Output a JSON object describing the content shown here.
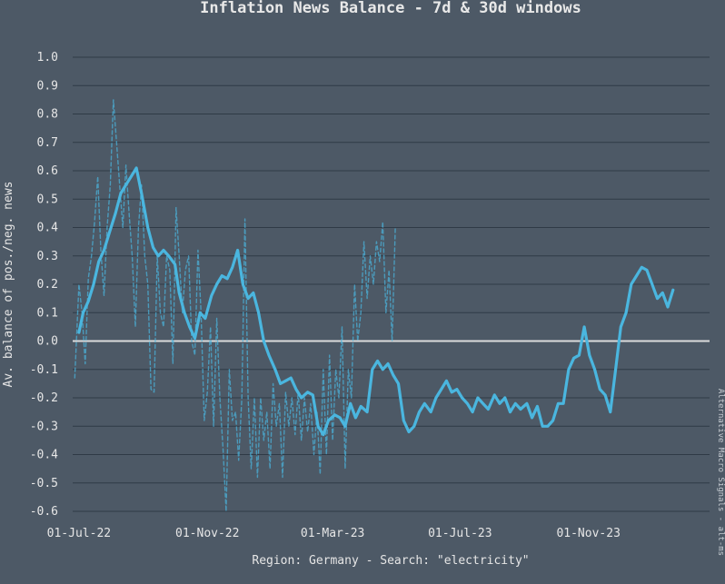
{
  "chart_data": {
    "type": "line",
    "title": "Inflation News Balance - 7d & 30d windows",
    "xlabel": "Region: Germany - Search: \"electricity\"",
    "ylabel": "Av. balance of pos./neg. news",
    "source_note": "Alternative Macro Signals - alt-ms",
    "x_ticks": [
      "01-Jul-22",
      "01-Nov-22",
      "01-Mar-23",
      "01-Jul-23",
      "01-Nov-23"
    ],
    "y_ticks": [
      "1.0",
      "0.9",
      "0.8",
      "0.7",
      "0.6",
      "0.5",
      "0.4",
      "0.3",
      "0.2",
      "0.1",
      "0.0",
      "-0.1",
      "-0.2",
      "-0.3",
      "-0.4",
      "-0.5",
      "-0.6"
    ],
    "ylim": [
      -0.6,
      1.0
    ],
    "xlim": [
      "2022-06-25",
      "2024-02-25"
    ],
    "grid": true,
    "zero_line": true,
    "colors": {
      "background": "#4d5966",
      "line": "#4ab6df",
      "grid": "#2f3a46",
      "zero": "#dcdcdc"
    },
    "series": [
      {
        "window": "30d",
        "style": "solid",
        "points": [
          [
            "2022-07-01",
            0.03
          ],
          [
            "2022-07-05",
            0.1
          ],
          [
            "2022-07-10",
            0.14
          ],
          [
            "2022-07-15",
            0.2
          ],
          [
            "2022-07-20",
            0.28
          ],
          [
            "2022-07-25",
            0.32
          ],
          [
            "2022-07-30",
            0.38
          ],
          [
            "2022-08-05",
            0.45
          ],
          [
            "2022-08-10",
            0.52
          ],
          [
            "2022-08-15",
            0.55
          ],
          [
            "2022-08-20",
            0.58
          ],
          [
            "2022-08-25",
            0.61
          ],
          [
            "2022-08-30",
            0.52
          ],
          [
            "2022-09-05",
            0.4
          ],
          [
            "2022-09-10",
            0.33
          ],
          [
            "2022-09-15",
            0.3
          ],
          [
            "2022-09-20",
            0.32
          ],
          [
            "2022-09-25",
            0.3
          ],
          [
            "2022-10-01",
            0.27
          ],
          [
            "2022-10-05",
            0.17
          ],
          [
            "2022-10-10",
            0.1
          ],
          [
            "2022-10-15",
            0.05
          ],
          [
            "2022-10-20",
            0.01
          ],
          [
            "2022-10-25",
            0.1
          ],
          [
            "2022-10-30",
            0.08
          ],
          [
            "2022-11-05",
            0.16
          ],
          [
            "2022-11-10",
            0.2
          ],
          [
            "2022-11-15",
            0.23
          ],
          [
            "2022-11-20",
            0.22
          ],
          [
            "2022-11-25",
            0.26
          ],
          [
            "2022-11-30",
            0.32
          ],
          [
            "2022-12-05",
            0.2
          ],
          [
            "2022-12-10",
            0.15
          ],
          [
            "2022-12-15",
            0.17
          ],
          [
            "2022-12-20",
            0.1
          ],
          [
            "2022-12-25",
            0.0
          ],
          [
            "2022-12-30",
            -0.05
          ],
          [
            "2023-01-05",
            -0.1
          ],
          [
            "2023-01-10",
            -0.15
          ],
          [
            "2023-01-15",
            -0.14
          ],
          [
            "2023-01-20",
            -0.13
          ],
          [
            "2023-01-25",
            -0.17
          ],
          [
            "2023-01-30",
            -0.2
          ],
          [
            "2023-02-05",
            -0.18
          ],
          [
            "2023-02-10",
            -0.19
          ],
          [
            "2023-02-15",
            -0.3
          ],
          [
            "2023-02-20",
            -0.33
          ],
          [
            "2023-02-25",
            -0.28
          ],
          [
            "2023-03-03",
            -0.26
          ],
          [
            "2023-03-08",
            -0.27
          ],
          [
            "2023-03-13",
            -0.3
          ],
          [
            "2023-03-18",
            -0.22
          ],
          [
            "2023-03-23",
            -0.27
          ],
          [
            "2023-03-28",
            -0.23
          ],
          [
            "2023-04-03",
            -0.25
          ],
          [
            "2023-04-08",
            -0.1
          ],
          [
            "2023-04-13",
            -0.07
          ],
          [
            "2023-04-18",
            -0.1
          ],
          [
            "2023-04-23",
            -0.08
          ],
          [
            "2023-04-28",
            -0.12
          ],
          [
            "2023-05-03",
            -0.15
          ],
          [
            "2023-05-08",
            -0.28
          ],
          [
            "2023-05-13",
            -0.32
          ],
          [
            "2023-05-18",
            -0.3
          ],
          [
            "2023-05-23",
            -0.25
          ],
          [
            "2023-05-28",
            -0.22
          ],
          [
            "2023-06-03",
            -0.25
          ],
          [
            "2023-06-08",
            -0.2
          ],
          [
            "2023-06-13",
            -0.17
          ],
          [
            "2023-06-18",
            -0.14
          ],
          [
            "2023-06-23",
            -0.18
          ],
          [
            "2023-06-28",
            -0.17
          ],
          [
            "2023-07-03",
            -0.2
          ],
          [
            "2023-07-08",
            -0.22
          ],
          [
            "2023-07-13",
            -0.25
          ],
          [
            "2023-07-18",
            -0.2
          ],
          [
            "2023-07-23",
            -0.22
          ],
          [
            "2023-07-28",
            -0.24
          ],
          [
            "2023-08-03",
            -0.19
          ],
          [
            "2023-08-08",
            -0.22
          ],
          [
            "2023-08-13",
            -0.2
          ],
          [
            "2023-08-18",
            -0.25
          ],
          [
            "2023-08-23",
            -0.22
          ],
          [
            "2023-08-28",
            -0.24
          ],
          [
            "2023-09-03",
            -0.22
          ],
          [
            "2023-09-08",
            -0.27
          ],
          [
            "2023-09-13",
            -0.23
          ],
          [
            "2023-09-18",
            -0.3
          ],
          [
            "2023-09-23",
            -0.3
          ],
          [
            "2023-09-28",
            -0.28
          ],
          [
            "2023-10-03",
            -0.22
          ],
          [
            "2023-10-08",
            -0.22
          ],
          [
            "2023-10-13",
            -0.1
          ],
          [
            "2023-10-18",
            -0.06
          ],
          [
            "2023-10-23",
            -0.05
          ],
          [
            "2023-10-28",
            0.05
          ],
          [
            "2023-11-02",
            -0.05
          ],
          [
            "2023-11-07",
            -0.1
          ],
          [
            "2023-11-12",
            -0.17
          ],
          [
            "2023-11-17",
            -0.19
          ],
          [
            "2023-11-22",
            -0.25
          ],
          [
            "2023-11-27",
            -0.1
          ],
          [
            "2023-12-02",
            0.05
          ],
          [
            "2023-12-07",
            0.1
          ],
          [
            "2023-12-12",
            0.2
          ],
          [
            "2023-12-17",
            0.23
          ],
          [
            "2023-12-22",
            0.26
          ],
          [
            "2023-12-27",
            0.25
          ],
          [
            "2024-01-01",
            0.2
          ],
          [
            "2024-01-06",
            0.15
          ],
          [
            "2024-01-11",
            0.17
          ],
          [
            "2024-01-16",
            0.12
          ],
          [
            "2024-01-21",
            0.18
          ]
        ]
      },
      {
        "window": "7d",
        "style": "dashed",
        "points": [
          [
            "2022-06-27",
            -0.13
          ],
          [
            "2022-07-01",
            0.2
          ],
          [
            "2022-07-04",
            0.1
          ],
          [
            "2022-07-07",
            -0.08
          ],
          [
            "2022-07-10",
            0.22
          ],
          [
            "2022-07-13",
            0.3
          ],
          [
            "2022-07-16",
            0.42
          ],
          [
            "2022-07-19",
            0.58
          ],
          [
            "2022-07-22",
            0.32
          ],
          [
            "2022-07-25",
            0.16
          ],
          [
            "2022-07-28",
            0.4
          ],
          [
            "2022-07-31",
            0.55
          ],
          [
            "2022-08-03",
            0.85
          ],
          [
            "2022-08-06",
            0.7
          ],
          [
            "2022-08-09",
            0.55
          ],
          [
            "2022-08-12",
            0.4
          ],
          [
            "2022-08-15",
            0.62
          ],
          [
            "2022-08-18",
            0.45
          ],
          [
            "2022-08-21",
            0.3
          ],
          [
            "2022-08-24",
            0.05
          ],
          [
            "2022-08-27",
            0.4
          ],
          [
            "2022-08-30",
            0.55
          ],
          [
            "2022-09-02",
            0.3
          ],
          [
            "2022-09-05",
            0.2
          ],
          [
            "2022-09-08",
            -0.17
          ],
          [
            "2022-09-11",
            -0.18
          ],
          [
            "2022-09-14",
            0.3
          ],
          [
            "2022-09-17",
            0.1
          ],
          [
            "2022-09-20",
            0.05
          ],
          [
            "2022-09-23",
            0.3
          ],
          [
            "2022-09-26",
            0.25
          ],
          [
            "2022-09-29",
            -0.08
          ],
          [
            "2022-10-02",
            0.47
          ],
          [
            "2022-10-05",
            0.3
          ],
          [
            "2022-10-08",
            0.1
          ],
          [
            "2022-10-11",
            0.25
          ],
          [
            "2022-10-14",
            0.3
          ],
          [
            "2022-10-17",
            0.0
          ],
          [
            "2022-10-20",
            -0.05
          ],
          [
            "2022-10-23",
            0.32
          ],
          [
            "2022-10-26",
            0.1
          ],
          [
            "2022-10-29",
            -0.28
          ],
          [
            "2022-11-01",
            -0.18
          ],
          [
            "2022-11-04",
            0.05
          ],
          [
            "2022-11-07",
            -0.3
          ],
          [
            "2022-11-10",
            0.08
          ],
          [
            "2022-11-13",
            -0.2
          ],
          [
            "2022-11-16",
            -0.38
          ],
          [
            "2022-11-19",
            -0.6
          ],
          [
            "2022-11-22",
            -0.1
          ],
          [
            "2022-11-25",
            -0.28
          ],
          [
            "2022-11-28",
            -0.25
          ],
          [
            "2022-12-01",
            -0.42
          ],
          [
            "2022-12-04",
            -0.2
          ],
          [
            "2022-12-07",
            0.43
          ],
          [
            "2022-12-10",
            -0.2
          ],
          [
            "2022-12-13",
            -0.45
          ],
          [
            "2022-12-16",
            -0.2
          ],
          [
            "2022-12-19",
            -0.48
          ],
          [
            "2022-12-22",
            -0.2
          ],
          [
            "2022-12-25",
            -0.35
          ],
          [
            "2022-12-28",
            -0.25
          ],
          [
            "2022-12-31",
            -0.45
          ],
          [
            "2023-01-03",
            -0.15
          ],
          [
            "2023-01-06",
            -0.3
          ],
          [
            "2023-01-09",
            -0.22
          ],
          [
            "2023-01-12",
            -0.48
          ],
          [
            "2023-01-15",
            -0.18
          ],
          [
            "2023-01-18",
            -0.3
          ],
          [
            "2023-01-21",
            -0.2
          ],
          [
            "2023-01-24",
            -0.33
          ],
          [
            "2023-01-27",
            -0.18
          ],
          [
            "2023-01-30",
            -0.35
          ],
          [
            "2023-02-02",
            -0.2
          ],
          [
            "2023-02-05",
            -0.32
          ],
          [
            "2023-02-08",
            -0.22
          ],
          [
            "2023-02-11",
            -0.4
          ],
          [
            "2023-02-14",
            -0.25
          ],
          [
            "2023-02-17",
            -0.47
          ],
          [
            "2023-02-20",
            -0.1
          ],
          [
            "2023-02-23",
            -0.4
          ],
          [
            "2023-02-26",
            -0.05
          ],
          [
            "2023-03-01",
            -0.35
          ],
          [
            "2023-03-04",
            -0.1
          ],
          [
            "2023-03-07",
            -0.2
          ],
          [
            "2023-03-10",
            0.05
          ],
          [
            "2023-03-13",
            -0.45
          ],
          [
            "2023-03-16",
            -0.1
          ],
          [
            "2023-03-19",
            -0.2
          ],
          [
            "2023-03-22",
            0.2
          ],
          [
            "2023-03-25",
            0.0
          ],
          [
            "2023-03-28",
            0.1
          ],
          [
            "2023-03-31",
            0.35
          ],
          [
            "2023-04-03",
            0.15
          ],
          [
            "2023-04-06",
            0.3
          ],
          [
            "2023-04-09",
            0.2
          ],
          [
            "2023-04-12",
            0.35
          ],
          [
            "2023-04-15",
            0.28
          ],
          [
            "2023-04-18",
            0.42
          ],
          [
            "2023-04-21",
            0.1
          ],
          [
            "2023-04-24",
            0.25
          ],
          [
            "2023-04-27",
            0.0
          ],
          [
            "2023-04-30",
            0.4
          ]
        ]
      }
    ]
  }
}
